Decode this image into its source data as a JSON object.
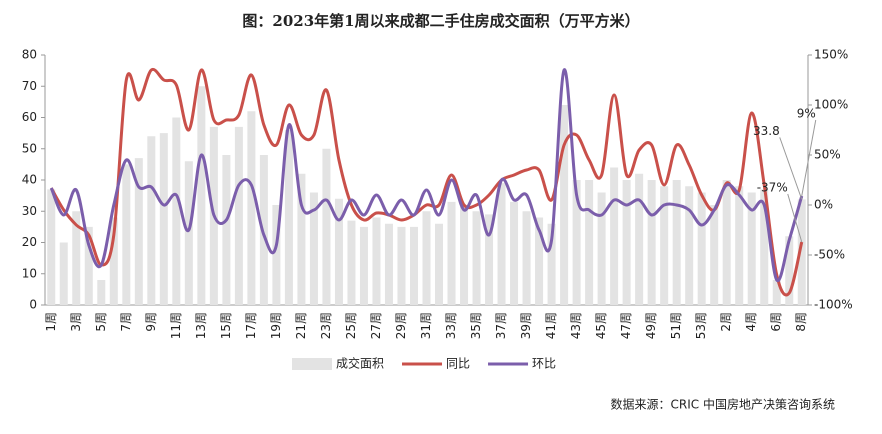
{
  "chart_data": {
    "type": "bar_line",
    "title": "图：2023年第1周以来成都二手住房成交面积（万平方米）",
    "source": "数据来源：CRIC 中国房地产决策咨询系统",
    "categories": [
      "1周",
      null,
      "3周",
      null,
      "5周",
      null,
      "7周",
      null,
      "9周",
      null,
      "11周",
      null,
      "13周",
      null,
      "15周",
      null,
      "17周",
      null,
      "19周",
      null,
      "21周",
      null,
      "23周",
      null,
      "25周",
      null,
      "27周",
      null,
      "29周",
      null,
      "31周",
      null,
      "33周",
      null,
      "35周",
      null,
      "37周",
      null,
      "39周",
      null,
      "41周",
      null,
      "43周",
      null,
      "45周",
      null,
      "47周",
      null,
      "49周",
      null,
      "51周",
      null,
      "53周",
      null,
      "2周",
      null,
      "4周",
      null,
      "6周",
      null,
      "8周"
    ],
    "ylim": [
      0,
      80
    ],
    "yticks": [
      0,
      10,
      20,
      30,
      40,
      50,
      60,
      70,
      80
    ],
    "y2lim": [
      -100,
      150
    ],
    "y2ticks": [
      {
        "value": -100,
        "label": "-100%"
      },
      {
        "value": -50,
        "label": "-50%"
      },
      {
        "value": 0,
        "label": "0%"
      },
      {
        "value": 50,
        "label": "50%"
      },
      {
        "value": 100,
        "label": "100%"
      },
      {
        "value": 150,
        "label": "150%"
      }
    ],
    "series": [
      {
        "name": "成交面积",
        "kind": "bar",
        "color": "#e3e3e3",
        "values": [
          37,
          20,
          30,
          25,
          8,
          28,
          45,
          47,
          54,
          55,
          60,
          46,
          70,
          57,
          48,
          57,
          62,
          48,
          32,
          56,
          42,
          36,
          50,
          34,
          27,
          25,
          28,
          26,
          25,
          25,
          30,
          26,
          33,
          32,
          30,
          29,
          39,
          33,
          30,
          28,
          26,
          64,
          40,
          40,
          36,
          44,
          40,
          42,
          40,
          38,
          40,
          38,
          36,
          32,
          40,
          38,
          36,
          37,
          8,
          22,
          33.8
        ],
        "value_labels": [
          null,
          null,
          null,
          null,
          null,
          null,
          null,
          null,
          null,
          null,
          null,
          null,
          null,
          null,
          null,
          null,
          null,
          null,
          null,
          null,
          null,
          null,
          null,
          null,
          null,
          null,
          null,
          null,
          null,
          null,
          null,
          null,
          null,
          null,
          null,
          null,
          null,
          null,
          null,
          null,
          null,
          null,
          null,
          null,
          null,
          null,
          null,
          null,
          null,
          null,
          null,
          null,
          null,
          null,
          null,
          null,
          null,
          null,
          null,
          null,
          "33.8"
        ]
      },
      {
        "name": "同比",
        "kind": "line",
        "axis": "y2",
        "color": "#c9504a",
        "values": [
          17,
          -5,
          -20,
          -30,
          -60,
          -30,
          125,
          105,
          135,
          125,
          120,
          75,
          135,
          85,
          85,
          90,
          130,
          80,
          60,
          100,
          70,
          70,
          115,
          45,
          0,
          -15,
          -8,
          -10,
          -15,
          -10,
          0,
          0,
          30,
          0,
          0,
          10,
          25,
          30,
          35,
          35,
          5,
          60,
          70,
          45,
          30,
          110,
          30,
          55,
          60,
          20,
          60,
          40,
          10,
          -5,
          22,
          15,
          92,
          20,
          -70,
          -88,
          -37
        ],
        "value_labels": [
          null,
          null,
          null,
          null,
          null,
          null,
          null,
          null,
          null,
          null,
          null,
          null,
          null,
          null,
          null,
          null,
          null,
          null,
          null,
          null,
          null,
          null,
          null,
          null,
          null,
          null,
          null,
          null,
          null,
          null,
          null,
          null,
          null,
          null,
          null,
          null,
          null,
          null,
          null,
          null,
          null,
          null,
          null,
          null,
          null,
          null,
          null,
          null,
          null,
          null,
          null,
          null,
          null,
          null,
          null,
          null,
          null,
          null,
          null,
          null,
          "-37%"
        ]
      },
      {
        "name": "环比",
        "kind": "line",
        "axis": "y2",
        "color": "#7b5eab",
        "values": [
          17,
          -10,
          15,
          -40,
          -60,
          0,
          45,
          18,
          18,
          0,
          10,
          -25,
          50,
          -10,
          -15,
          20,
          20,
          -30,
          -40,
          80,
          0,
          -5,
          5,
          -15,
          5,
          -10,
          10,
          -10,
          5,
          -10,
          15,
          -10,
          25,
          -5,
          10,
          -30,
          25,
          5,
          10,
          -25,
          -35,
          135,
          10,
          -5,
          -10,
          5,
          0,
          5,
          -10,
          0,
          0,
          -5,
          -20,
          -5,
          20,
          10,
          -5,
          0,
          -75,
          -35,
          9
        ],
        "value_labels": [
          null,
          null,
          null,
          null,
          null,
          null,
          null,
          null,
          null,
          null,
          null,
          null,
          null,
          null,
          null,
          null,
          null,
          null,
          null,
          null,
          null,
          null,
          null,
          null,
          null,
          null,
          null,
          null,
          null,
          null,
          null,
          null,
          null,
          null,
          null,
          null,
          null,
          null,
          null,
          null,
          null,
          null,
          null,
          null,
          null,
          null,
          null,
          null,
          null,
          null,
          null,
          null,
          null,
          null,
          null,
          null,
          null,
          null,
          null,
          null,
          "9%"
        ]
      }
    ]
  }
}
